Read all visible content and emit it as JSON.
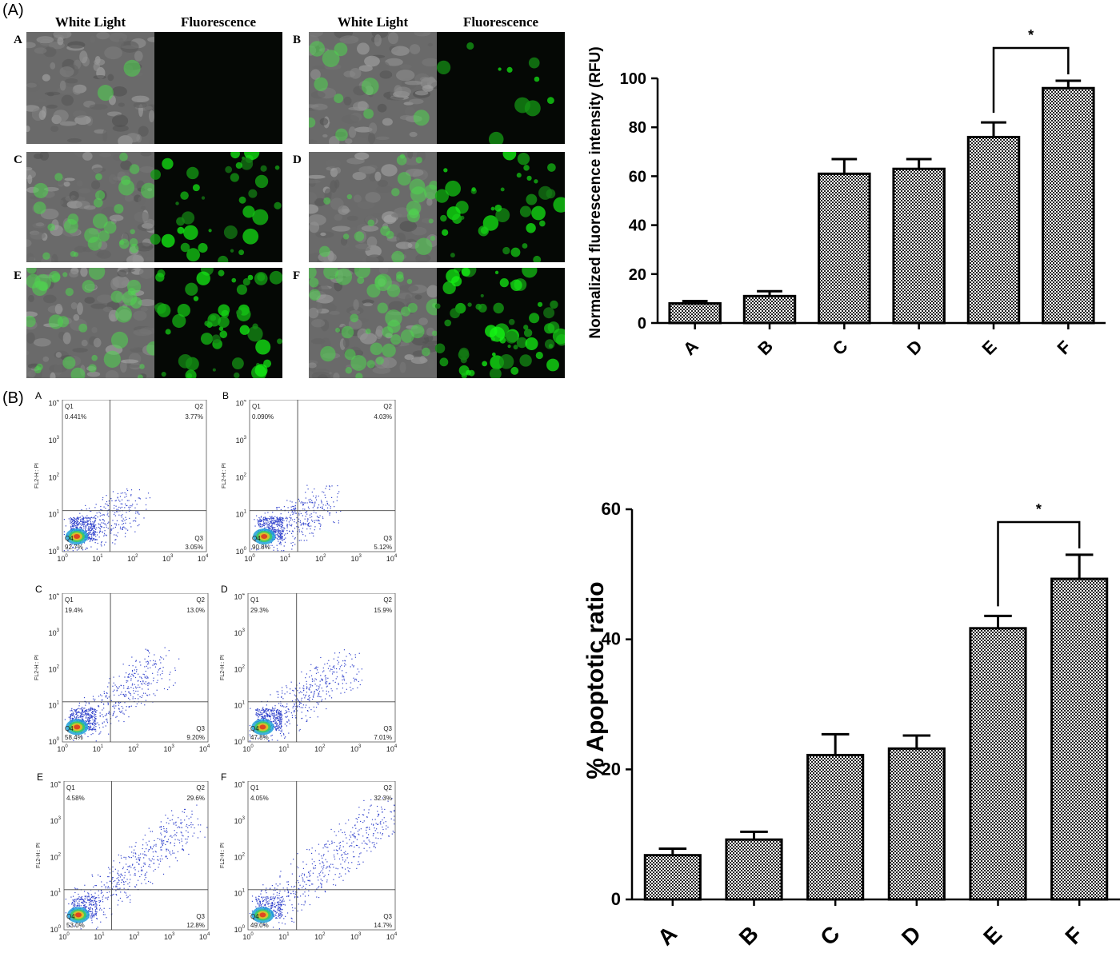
{
  "panels": {
    "a_label": "(A)",
    "b_label": "(B)"
  },
  "micrographs": {
    "header_white": "White Light",
    "header_fluor": "Fluorescence",
    "items": [
      {
        "letter": "A",
        "level": 0.05,
        "fluor_level": 0.0
      },
      {
        "letter": "B",
        "level": 0.25,
        "fluor_level": 0.15
      },
      {
        "letter": "C",
        "level": 0.7,
        "fluor_level": 0.55
      },
      {
        "letter": "D",
        "level": 0.6,
        "fluor_level": 0.55
      },
      {
        "letter": "E",
        "level": 0.8,
        "fluor_level": 0.75
      },
      {
        "letter": "F",
        "level": 1.0,
        "fluor_level": 0.9
      }
    ]
  },
  "flow": {
    "ylabel": "FL2-H:: PI",
    "tick_labels": [
      "10",
      "10",
      "10",
      "10",
      "10"
    ],
    "tick_exps": [
      "0",
      "1",
      "2",
      "3",
      "4"
    ],
    "plots": [
      {
        "letter": "A",
        "q1": "0.441%",
        "q2": "3.77%",
        "q3": "3.05%",
        "q4": "92.7%",
        "spread": 0.1
      },
      {
        "letter": "B",
        "q1": "0.090%",
        "q2": "4.03%",
        "q3": "5.12%",
        "q4": "90.8%",
        "spread": 0.15
      },
      {
        "letter": "C",
        "q1": "19.4%",
        "q2": "13.0%",
        "q3": "9.20%",
        "q4": "58.4%",
        "spread": 0.5
      },
      {
        "letter": "D",
        "q1": "29.3%",
        "q2": "15.9%",
        "q3": "7.01%",
        "q4": "47.8%",
        "spread": 0.5
      },
      {
        "letter": "E",
        "q1": "4.58%",
        "q2": "29.6%",
        "q3": "12.8%",
        "q4": "53.0%",
        "spread": 0.9
      },
      {
        "letter": "F",
        "q1": "4.05%",
        "q2": "32.3%",
        "q3": "14.7%",
        "q4": "49.0%",
        "spread": 1.0
      }
    ]
  },
  "chart_data": [
    {
      "type": "bar",
      "categories": [
        "A",
        "B",
        "C",
        "D",
        "E",
        "F"
      ],
      "values": [
        8,
        11,
        61,
        63,
        76,
        96
      ],
      "errors": [
        1,
        2,
        6,
        4,
        6,
        3
      ],
      "ylabel": "Normalized fluorescence intensity (RFU)",
      "xlabel": "",
      "ylim": [
        0,
        100
      ],
      "yticks": [
        0,
        20,
        40,
        60,
        80,
        100
      ],
      "significance": {
        "from": "E",
        "to": "F",
        "label": "*"
      }
    },
    {
      "type": "bar",
      "categories": [
        "A",
        "B",
        "C",
        "D",
        "E",
        "F"
      ],
      "values": [
        6.8,
        9.2,
        22.2,
        23.2,
        41.7,
        49.3
      ],
      "errors": [
        1.0,
        1.2,
        3.2,
        2.0,
        1.9,
        3.7
      ],
      "ylabel": "% Apoptotic ratio",
      "xlabel": "",
      "ylim": [
        0,
        60
      ],
      "yticks": [
        0,
        20,
        40,
        60
      ],
      "significance": {
        "from": "E",
        "to": "F",
        "label": "*"
      }
    }
  ]
}
